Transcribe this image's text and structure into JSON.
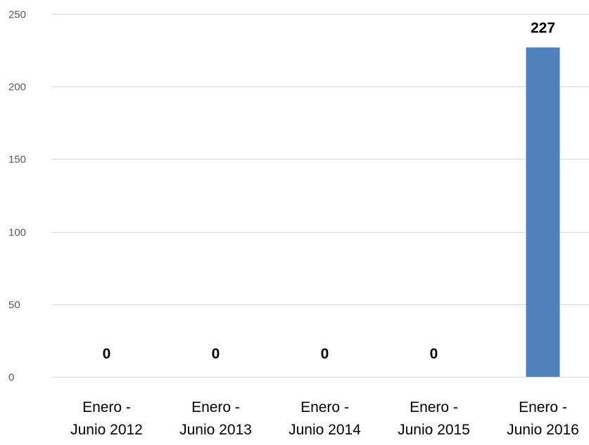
{
  "chart_data": {
    "type": "bar",
    "categories": [
      [
        "Enero -",
        "Junio 2012"
      ],
      [
        "Enero -",
        "Junio 2013"
      ],
      [
        "Enero -",
        "Junio 2014"
      ],
      [
        "Enero -",
        "Junio 2015"
      ],
      [
        "Enero -",
        "Junio 2016"
      ]
    ],
    "values": [
      0,
      0,
      0,
      0,
      227
    ],
    "data_labels": [
      "0",
      "0",
      "0",
      "0",
      "227"
    ],
    "ylim": [
      0,
      250
    ],
    "yticks": [
      0,
      50,
      100,
      150,
      200,
      250
    ],
    "title": "",
    "xlabel": "",
    "ylabel": "",
    "grid": true,
    "legend": "none",
    "bar_color": "#4f81bd"
  }
}
